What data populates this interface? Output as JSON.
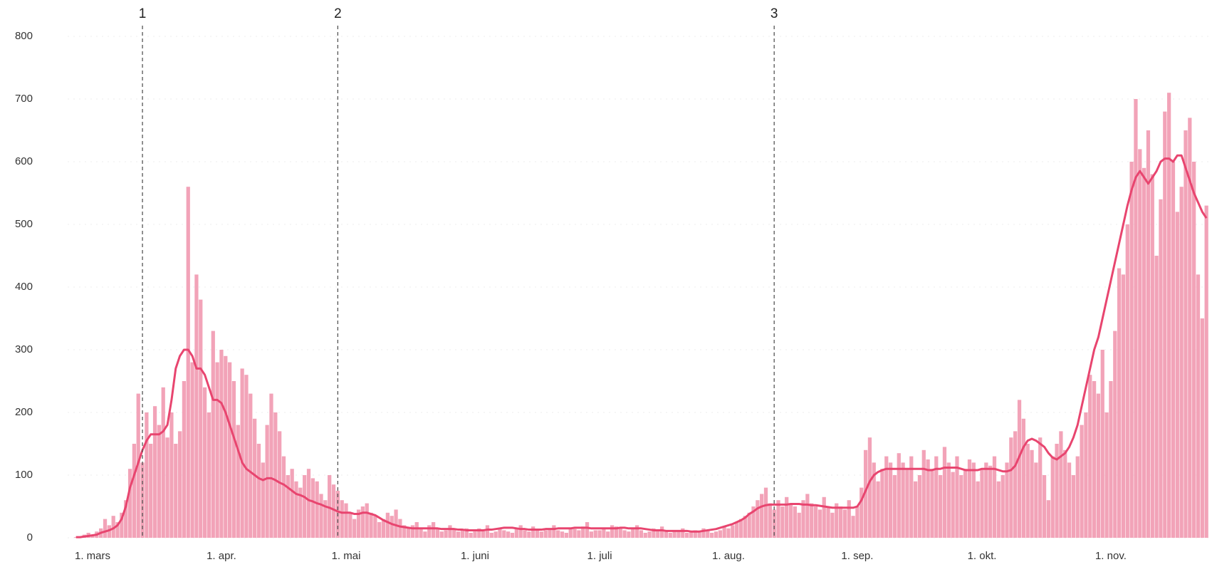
{
  "chart_data": {
    "type": "bar",
    "x": [
      57,
      58,
      59,
      60,
      61,
      62,
      63,
      64,
      65,
      66,
      67,
      68,
      69,
      70,
      71,
      72,
      73,
      74,
      75,
      76,
      77,
      78,
      79,
      80,
      81,
      82,
      83,
      84,
      85,
      86,
      87,
      88,
      89,
      90,
      91,
      92,
      93,
      94,
      95,
      96,
      97,
      98,
      99,
      100,
      101,
      102,
      103,
      104,
      105,
      106,
      107,
      108,
      109,
      110,
      111,
      112,
      113,
      114,
      115,
      116,
      117,
      118,
      119,
      120,
      121,
      122,
      123,
      124,
      125,
      126,
      127,
      128,
      129,
      130,
      131,
      132,
      133,
      134,
      135,
      136,
      137,
      138,
      139,
      140,
      141,
      142,
      143,
      144,
      145,
      146,
      147,
      148,
      149,
      150,
      151,
      152,
      153,
      154,
      155,
      156,
      157,
      158,
      159,
      160,
      161,
      162,
      163,
      164,
      165,
      166,
      167,
      168,
      169,
      170,
      171,
      172,
      173,
      174,
      175,
      176,
      177,
      178,
      179,
      180,
      181,
      182,
      183,
      184,
      185,
      186,
      187,
      188,
      189,
      190,
      191,
      192,
      193,
      194,
      195,
      196,
      197,
      198,
      199,
      200,
      201,
      202,
      203,
      204,
      205,
      206,
      207,
      208,
      209,
      210,
      211,
      212,
      213,
      214,
      215,
      216,
      217,
      218,
      219,
      220,
      221,
      222,
      223,
      224,
      225,
      226,
      227,
      228,
      229,
      230,
      231,
      232,
      233,
      234,
      235,
      236,
      237,
      238,
      239,
      240,
      241,
      242,
      243,
      244,
      245,
      246,
      247,
      248,
      249,
      250,
      251,
      252,
      253,
      254,
      255,
      256,
      257,
      258,
      259,
      260,
      261,
      262,
      263,
      264,
      265,
      266,
      267,
      268,
      269,
      270,
      271,
      272,
      273,
      274,
      275,
      276,
      277,
      278,
      279,
      280,
      281,
      282,
      283,
      284,
      285,
      286,
      287,
      288,
      289,
      290,
      291,
      292,
      293,
      294,
      295,
      296,
      297,
      298,
      299,
      300,
      301,
      302,
      303,
      304,
      305,
      306,
      307,
      308,
      309,
      310,
      311,
      312,
      313,
      314,
      315,
      316,
      317,
      318,
      319,
      320,
      321,
      322,
      323,
      324,
      325,
      326,
      327,
      328,
      329
    ],
    "series": [
      {
        "type": "bar",
        "color": "#f2a3b8",
        "values": [
          1,
          2,
          5,
          8,
          5,
          10,
          15,
          30,
          20,
          35,
          25,
          40,
          60,
          110,
          150,
          230,
          120,
          200,
          150,
          210,
          180,
          240,
          160,
          200,
          150,
          170,
          250,
          560,
          280,
          420,
          380,
          240,
          200,
          330,
          280,
          300,
          290,
          280,
          250,
          180,
          270,
          260,
          230,
          190,
          150,
          120,
          180,
          230,
          200,
          170,
          130,
          100,
          110,
          90,
          80,
          100,
          110,
          95,
          90,
          70,
          60,
          100,
          85,
          75,
          60,
          55,
          40,
          30,
          45,
          50,
          55,
          40,
          35,
          25,
          30,
          40,
          35,
          45,
          30,
          20,
          15,
          20,
          25,
          15,
          10,
          20,
          25,
          15,
          10,
          12,
          20,
          15,
          10,
          12,
          15,
          8,
          10,
          15,
          12,
          20,
          8,
          10,
          15,
          12,
          10,
          8,
          15,
          20,
          12,
          10,
          18,
          14,
          10,
          12,
          15,
          20,
          12,
          10,
          8,
          15,
          14,
          12,
          18,
          25,
          10,
          12,
          12,
          15,
          10,
          20,
          18,
          15,
          12,
          10,
          15,
          20,
          12,
          8,
          10,
          15,
          12,
          18,
          10,
          8,
          12,
          10,
          15,
          8,
          10,
          12,
          10,
          15,
          12,
          8,
          10,
          12,
          18,
          15,
          20,
          25,
          30,
          35,
          40,
          50,
          60,
          70,
          80,
          55,
          45,
          60,
          50,
          65,
          55,
          50,
          40,
          60,
          70,
          55,
          50,
          45,
          65,
          50,
          40,
          55,
          50,
          45,
          60,
          35,
          50,
          80,
          140,
          160,
          120,
          90,
          110,
          130,
          120,
          100,
          135,
          120,
          110,
          130,
          90,
          100,
          140,
          125,
          110,
          130,
          100,
          145,
          120,
          105,
          130,
          100,
          110,
          125,
          120,
          90,
          110,
          120,
          115,
          130,
          90,
          100,
          120,
          160,
          170,
          220,
          190,
          150,
          140,
          120,
          160,
          100,
          60,
          130,
          150,
          170,
          140,
          120,
          100,
          130,
          180,
          200,
          260,
          250,
          230,
          300,
          200,
          250,
          330,
          430,
          420,
          500,
          600,
          700,
          620,
          590,
          650,
          580,
          450,
          540,
          680,
          710,
          600,
          520,
          560,
          650,
          670,
          600,
          420,
          350,
          530
        ]
      },
      {
        "type": "line",
        "color": "#e8456f",
        "values": [
          1,
          1,
          2,
          3,
          4,
          5,
          8,
          10,
          12,
          15,
          20,
          30,
          50,
          80,
          100,
          120,
          140,
          155,
          165,
          165,
          165,
          170,
          180,
          220,
          270,
          290,
          300,
          300,
          290,
          270,
          270,
          260,
          240,
          220,
          220,
          215,
          200,
          180,
          160,
          140,
          120,
          110,
          105,
          100,
          95,
          92,
          95,
          95,
          92,
          88,
          85,
          80,
          75,
          70,
          68,
          65,
          60,
          58,
          55,
          53,
          50,
          48,
          45,
          42,
          40,
          40,
          40,
          38,
          38,
          40,
          40,
          38,
          36,
          32,
          28,
          25,
          22,
          20,
          18,
          17,
          16,
          15,
          15,
          15,
          15,
          15,
          15,
          15,
          14,
          14,
          14,
          14,
          13,
          13,
          12,
          12,
          12,
          12,
          12,
          13,
          13,
          14,
          15,
          16,
          16,
          16,
          15,
          14,
          14,
          13,
          13,
          13,
          13,
          14,
          14,
          14,
          15,
          15,
          15,
          15,
          16,
          16,
          16,
          16,
          15,
          15,
          15,
          15,
          15,
          15,
          15,
          16,
          16,
          15,
          15,
          15,
          15,
          14,
          13,
          12,
          12,
          12,
          11,
          11,
          11,
          11,
          11,
          11,
          10,
          10,
          10,
          11,
          12,
          13,
          14,
          16,
          18,
          20,
          22,
          25,
          28,
          32,
          38,
          42,
          47,
          50,
          52,
          53,
          53,
          53,
          53,
          53,
          54,
          54,
          54,
          53,
          53,
          52,
          52,
          51,
          50,
          49,
          48,
          48,
          48,
          48,
          48,
          48,
          50,
          60,
          75,
          90,
          100,
          105,
          108,
          110,
          110,
          110,
          110,
          110,
          110,
          110,
          110,
          110,
          110,
          108,
          108,
          110,
          110,
          112,
          112,
          112,
          112,
          110,
          108,
          108,
          108,
          108,
          110,
          110,
          110,
          110,
          108,
          106,
          106,
          108,
          115,
          130,
          145,
          155,
          158,
          155,
          150,
          145,
          135,
          128,
          125,
          130,
          135,
          145,
          160,
          180,
          210,
          240,
          270,
          300,
          320,
          350,
          380,
          410,
          440,
          470,
          500,
          530,
          555,
          575,
          585,
          575,
          565,
          575,
          585,
          600,
          605,
          605,
          600,
          610,
          610,
          590,
          570,
          550,
          535,
          520,
          510
        ]
      }
    ],
    "xlim": [
      55,
      330
    ],
    "xticks": [
      {
        "value": 61,
        "label": "1. mars"
      },
      {
        "value": 92,
        "label": "1. apr."
      },
      {
        "value": 122,
        "label": "1. mai"
      },
      {
        "value": 153,
        "label": "1. juni"
      },
      {
        "value": 183,
        "label": "1. juli"
      },
      {
        "value": 214,
        "label": "1. aug."
      },
      {
        "value": 245,
        "label": "1. sep."
      },
      {
        "value": 275,
        "label": "1. okt."
      },
      {
        "value": 306,
        "label": "1. nov."
      }
    ],
    "ylim": [
      0,
      800
    ],
    "yticks": [
      0,
      100,
      200,
      300,
      400,
      500,
      600,
      700,
      800
    ],
    "grid": true,
    "annotations": [
      {
        "label": "1",
        "x": 73
      },
      {
        "label": "2",
        "x": 120
      },
      {
        "label": "3",
        "x": 225
      }
    ]
  }
}
